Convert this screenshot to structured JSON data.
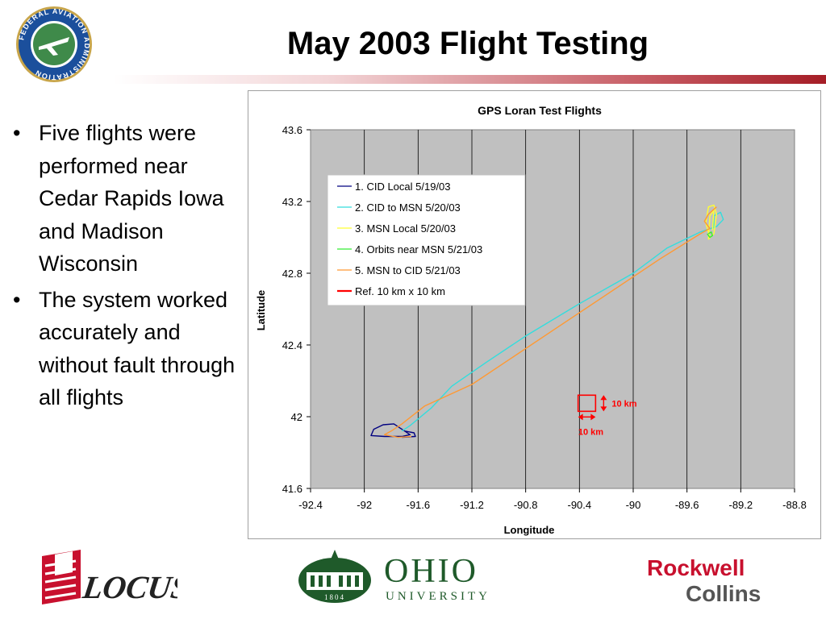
{
  "slide": {
    "title": "May 2003 Flight Testing",
    "bullets": [
      "Five flights were performed near Cedar Rapids Iowa and Madison Wisconsin",
      "The system worked accurately and without fault through all flights"
    ],
    "bullet_glyph": "•"
  },
  "logos": {
    "faa_text": "FEDERAL AVIATION ADMINISTRATION",
    "locus": "LOCUS",
    "ohio_main": "OHIO",
    "ohio_sub": "UNIVERSITY",
    "ohio_year": "1804",
    "rc_line1": "Rockwell",
    "rc_line2": "Collins"
  },
  "colors": {
    "title_bar_end": "#a51d26",
    "plot_background": "#c0c0c0",
    "faa_blue": "#1b4f9c",
    "faa_gold": "#c8a54a",
    "locus_red": "#c8102e",
    "ohio_green": "#1f5a2a",
    "rc_red": "#c8102e",
    "rc_gray": "#555555"
  },
  "chart_data": {
    "type": "line",
    "title": "GPS Loran Test Flights",
    "xlabel": "Longitude",
    "ylabel": "Latitude",
    "xlim": [
      -92.4,
      -88.8
    ],
    "ylim": [
      41.6,
      43.6
    ],
    "x_ticks": [
      -92.4,
      -92,
      -91.6,
      -91.2,
      -90.8,
      -90.4,
      -90,
      -89.6,
      -89.2,
      -88.8
    ],
    "y_ticks": [
      41.6,
      42,
      42.4,
      42.8,
      43.2,
      43.6
    ],
    "x_tick_labels": [
      "-92.4",
      "-92",
      "-91.6",
      "-91.2",
      "-90.8",
      "-90.4",
      "-90",
      "-89.6",
      "-89.2",
      "-88.8"
    ],
    "y_tick_labels": [
      "41.6",
      "42",
      "42.4",
      "42.8",
      "43.2",
      "43.6"
    ],
    "grid": "vertical",
    "legend_position": "top-left",
    "series": [
      {
        "name": "1. CID Local 5/19/03",
        "color": "#000080",
        "points": [
          [
            -91.7,
            41.92
          ],
          [
            -91.66,
            41.9
          ],
          [
            -91.72,
            41.89
          ],
          [
            -91.85,
            41.89
          ],
          [
            -91.95,
            41.895
          ],
          [
            -91.93,
            41.93
          ],
          [
            -91.86,
            41.955
          ],
          [
            -91.78,
            41.96
          ],
          [
            -91.74,
            41.94
          ],
          [
            -91.7,
            41.92
          ],
          [
            -91.63,
            41.91
          ],
          [
            -91.62,
            41.89
          ],
          [
            -91.72,
            41.885
          ]
        ]
      },
      {
        "name": "2. CID to MSN 5/20/03",
        "color": "#33dddd",
        "points": [
          [
            -91.72,
            41.92
          ],
          [
            -91.66,
            41.95
          ],
          [
            -91.5,
            42.05
          ],
          [
            -91.35,
            42.17
          ],
          [
            -91.1,
            42.3
          ],
          [
            -90.8,
            42.45
          ],
          [
            -90.4,
            42.63
          ],
          [
            -90.0,
            42.8
          ],
          [
            -89.75,
            42.94
          ],
          [
            -89.5,
            43.03
          ],
          [
            -89.38,
            43.06
          ],
          [
            -89.33,
            43.1
          ],
          [
            -89.35,
            43.14
          ],
          [
            -89.4,
            43.12
          ],
          [
            -89.4,
            43.05
          ]
        ]
      },
      {
        "name": "3. MSN Local 5/20/03",
        "color": "#ffff33",
        "points": [
          [
            -89.43,
            43.0
          ],
          [
            -89.46,
            43.08
          ],
          [
            -89.44,
            43.17
          ],
          [
            -89.4,
            43.18
          ],
          [
            -89.38,
            43.13
          ],
          [
            -89.4,
            43.02
          ],
          [
            -89.44,
            42.99
          ],
          [
            -89.43,
            43.12
          ],
          [
            -89.4,
            43.15
          ],
          [
            -89.41,
            43.04
          ]
        ]
      },
      {
        "name": "4. Orbits near MSN 5/21/03",
        "color": "#33ee33",
        "points": [
          [
            -89.45,
            43.02
          ],
          [
            -89.43,
            43.0
          ],
          [
            -89.41,
            43.01
          ],
          [
            -89.42,
            43.03
          ],
          [
            -89.44,
            43.02
          ]
        ]
      },
      {
        "name": "5. MSN to CID 5/21/03",
        "color": "#ff9933",
        "points": [
          [
            -89.38,
            43.17
          ],
          [
            -89.44,
            43.13
          ],
          [
            -89.47,
            43.09
          ],
          [
            -89.43,
            43.05
          ],
          [
            -89.5,
            43.02
          ],
          [
            -89.8,
            42.88
          ],
          [
            -90.2,
            42.68
          ],
          [
            -90.6,
            42.48
          ],
          [
            -91.2,
            42.18
          ],
          [
            -91.55,
            42.06
          ],
          [
            -91.72,
            41.96
          ],
          [
            -91.8,
            41.92
          ],
          [
            -91.85,
            41.9
          ],
          [
            -91.75,
            41.885
          ],
          [
            -91.65,
            41.89
          ]
        ]
      }
    ],
    "reference": {
      "name": "Ref. 10 km x 10 km",
      "color": "#ff0000",
      "box": {
        "lon_min": -90.41,
        "lon_max": -90.28,
        "lat_min": 42.03,
        "lat_max": 42.12
      },
      "width_label": "10 km",
      "height_label": "10 km"
    }
  }
}
